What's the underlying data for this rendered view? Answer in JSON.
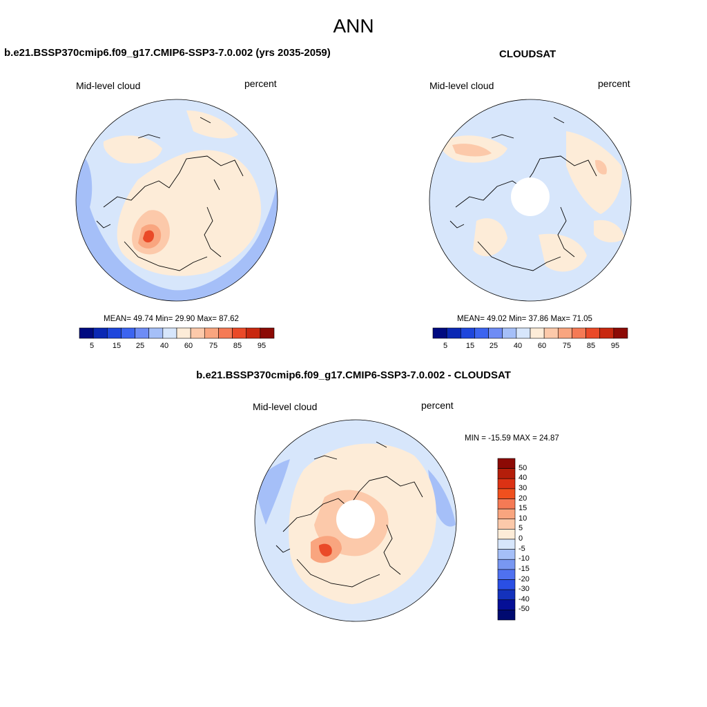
{
  "main_title": "ANN",
  "panels": [
    {
      "title": "b.e21.BSSP370cmip6.f09_g17.CMIP6-SSP3-7.0.002 (yrs 2035-2059)",
      "left_label": "Mid-level cloud",
      "right_label": "percent",
      "stats": {
        "mean": "49.74",
        "min": "29.90",
        "max": "87.62",
        "text": "MEAN=  49.74  Min=  29.90  Max=  87.62"
      }
    },
    {
      "title": "CLOUDSAT",
      "left_label": "Mid-level cloud",
      "right_label": "percent",
      "stats": {
        "mean": "49.02",
        "min": "37.86",
        "max": "71.05",
        "text": "MEAN=  49.02  Min=  37.86  Max=  71.05"
      }
    },
    {
      "title": "b.e21.BSSP370cmip6.f09_g17.CMIP6-SSP3-7.0.002 - CLOUDSAT",
      "left_label": "Mid-level cloud",
      "right_label": "percent",
      "stats": {
        "min": "-15.59",
        "max": "24.87",
        "text": "MIN = -15.59 MAX =  24.87"
      }
    }
  ],
  "colorbar_horizontal": {
    "tick_labels": [
      "5",
      "15",
      "25",
      "40",
      "60",
      "75",
      "85",
      "95"
    ],
    "colors": [
      "#000a80",
      "#0a28b4",
      "#1e46dc",
      "#3c64f0",
      "#6e8cf5",
      "#a5bff8",
      "#d7e6fb",
      "#fdecd8",
      "#fcc9aa",
      "#f9a57f",
      "#f57a55",
      "#ea4a28",
      "#c8280f",
      "#8c0a05"
    ]
  },
  "colorbar_vertical": {
    "tick_labels": [
      "50",
      "40",
      "30",
      "20",
      "15",
      "10",
      "5",
      "0",
      "-5",
      "-10",
      "-15",
      "-20",
      "-30",
      "-40",
      "-50"
    ],
    "colors": [
      "#8c0a05",
      "#b41e0a",
      "#dc3214",
      "#f0501e",
      "#f57a55",
      "#f9a57f",
      "#fcc9aa",
      "#fdecd8",
      "#d7e6fb",
      "#a5bff8",
      "#7897f2",
      "#4f71f0",
      "#2a4fe4",
      "#1432bc",
      "#050f96",
      "#000a70"
    ]
  },
  "chart_data": [
    {
      "type": "heatmap",
      "title": "b.e21.BSSP370cmip6.f09_g17.CMIP6-SSP3-7.0.002 (yrs 2035-2059)",
      "variable": "Mid-level cloud",
      "units": "percent",
      "projection": "north polar stereographic",
      "mean": 49.74,
      "min": 29.9,
      "max": 87.62,
      "contour_levels": [
        5,
        10,
        15,
        20,
        25,
        30,
        40,
        50,
        60,
        65,
        70,
        75,
        80,
        85,
        90,
        95
      ]
    },
    {
      "type": "heatmap",
      "title": "CLOUDSAT",
      "variable": "Mid-level cloud",
      "units": "percent",
      "projection": "north polar stereographic",
      "mean": 49.02,
      "min": 37.86,
      "max": 71.05,
      "contour_levels": [
        5,
        10,
        15,
        20,
        25,
        30,
        40,
        50,
        60,
        65,
        70,
        75,
        80,
        85,
        90,
        95
      ]
    },
    {
      "type": "heatmap",
      "title": "b.e21.BSSP370cmip6.f09_g17.CMIP6-SSP3-7.0.002 - CLOUDSAT",
      "variable": "Mid-level cloud",
      "units": "percent",
      "projection": "north polar stereographic",
      "min": -15.59,
      "max": 24.87,
      "contour_levels": [
        -50,
        -40,
        -30,
        -20,
        -15,
        -10,
        -5,
        0,
        5,
        10,
        15,
        20,
        30,
        40,
        50
      ]
    }
  ]
}
